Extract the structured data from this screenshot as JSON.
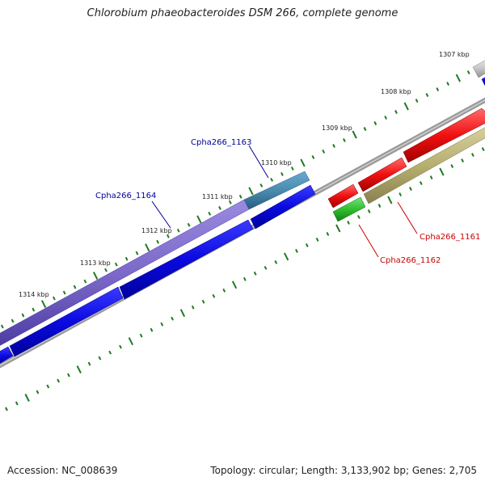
{
  "title": "Chlorobium phaeobacteroides DSM 266, complete genome",
  "accession": "Accession: NC_008639",
  "summary": "Topology: circular; Length: 3,133,902 bp; Genes: 2,705",
  "ticks": [
    "1307 kbp",
    "1308 kbp",
    "1309 kbp",
    "1310 kbp",
    "1311 kbp",
    "1312 kbp",
    "1313 kbp",
    "1314 kbp"
  ],
  "genes": [
    {
      "name": "Cpha266_1161",
      "color": "#cc0000"
    },
    {
      "name": "Cpha266_1162",
      "color": "#cc0000"
    },
    {
      "name": "Cpha266_1163",
      "color": "#00009c"
    },
    {
      "name": "Cpha266_1164",
      "color": "#00009c"
    }
  ],
  "colors": {
    "backbone": "#8a8a8a",
    "tick": "#1f7a1f",
    "blue": "#1010e0",
    "purple": "#7b68c8",
    "teal": "#4a8cb0",
    "red": "#f01010",
    "green": "#2fbf2f",
    "olive": "#b8b070",
    "grey": "#c8c8c8"
  }
}
